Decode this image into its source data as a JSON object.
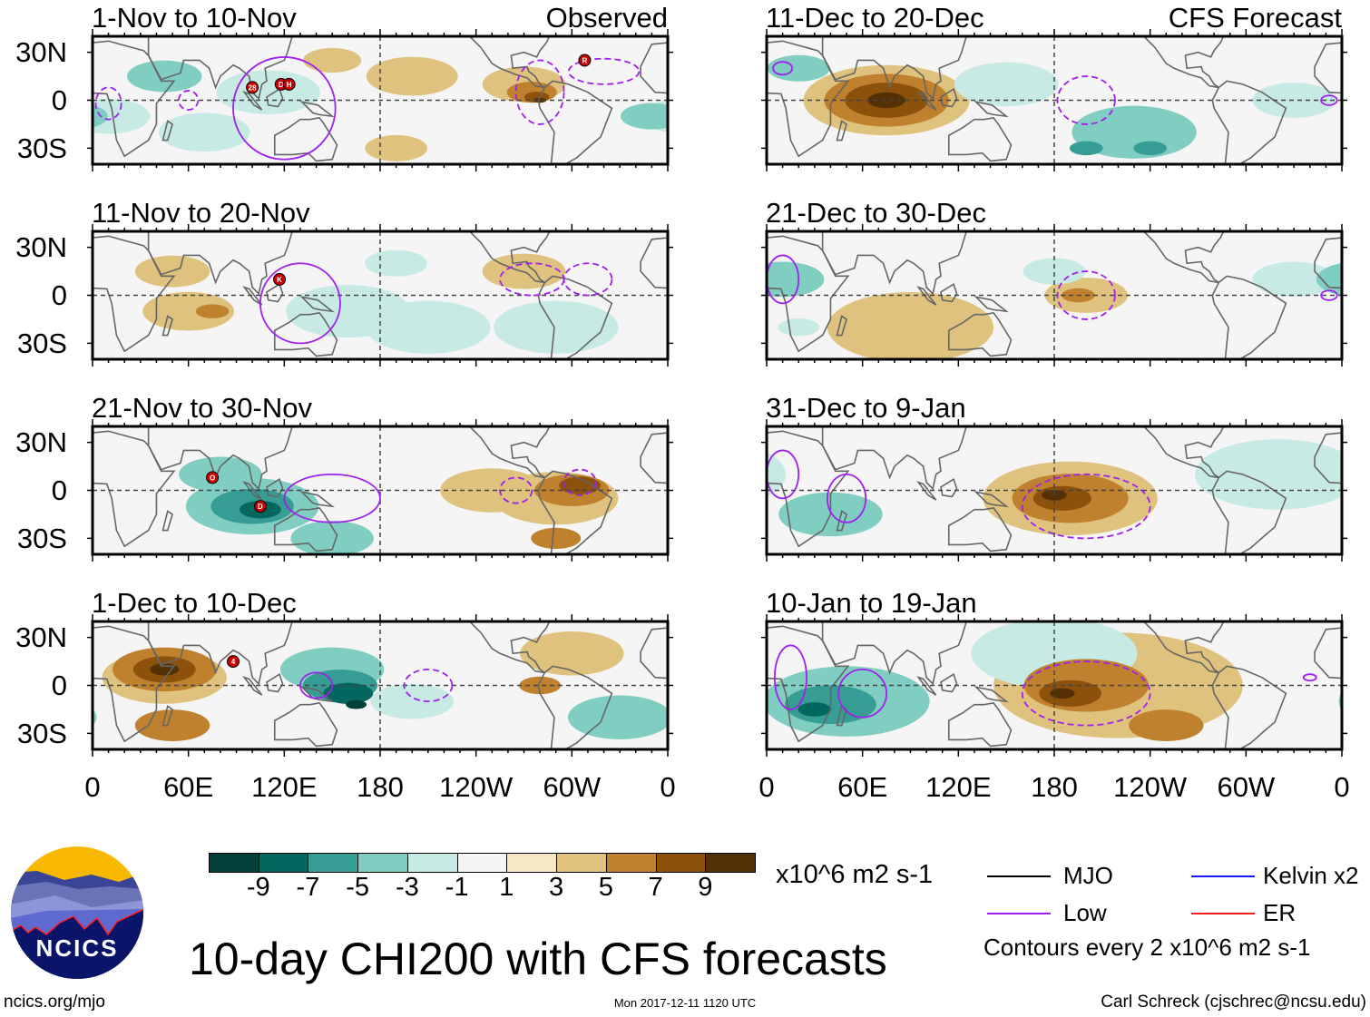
{
  "colors": {
    "levels": [
      "#01403a",
      "#02675f",
      "#359d93",
      "#80cdc1",
      "#c7eae5",
      "#f5f5f5",
      "#f6e8c3",
      "#dfc27d",
      "#bf812d",
      "#8c510a",
      "#543005"
    ],
    "low_contour": "#a020f0",
    "mjo": "#000000",
    "kelvin": "#1a1aff",
    "er": "#ff1a1a",
    "storm": "#cc0000"
  },
  "axes": {
    "lat_labels": [
      "30N",
      "0",
      "30S"
    ],
    "lon_labels": [
      "0",
      "60E",
      "120E",
      "180",
      "120W",
      "60W",
      "0"
    ]
  },
  "panels": [
    {
      "title": "1-Nov to 10-Nov",
      "tag": "Observed",
      "blobs": [
        [
          45,
          15,
          18,
          -3
        ],
        [
          70,
          -20,
          22,
          -2
        ],
        [
          110,
          5,
          25,
          -2
        ],
        [
          10,
          -10,
          20,
          -2
        ],
        [
          350,
          -10,
          15,
          -3
        ],
        [
          200,
          15,
          22,
          2
        ],
        [
          150,
          25,
          14,
          2
        ],
        [
          190,
          -30,
          15,
          2
        ],
        [
          270,
          10,
          20,
          2
        ],
        [
          275,
          5,
          12,
          4
        ],
        [
          278,
          2,
          6,
          6
        ],
        [
          280,
          0,
          3,
          8
        ]
      ],
      "contours": [
        [
          120,
          -5,
          32,
          32,
          "solid"
        ],
        [
          280,
          5,
          15,
          20,
          "dashed"
        ],
        [
          320,
          18,
          22,
          8,
          "dashed"
        ],
        [
          60,
          0,
          6,
          6,
          "dashed"
        ],
        [
          10,
          -2,
          8,
          10,
          "dashed"
        ]
      ],
      "storms": [
        [
          100,
          8,
          "28"
        ],
        [
          118,
          10,
          "D"
        ],
        [
          123,
          10,
          "H"
        ],
        [
          308,
          25,
          "R"
        ]
      ]
    },
    {
      "title": "11-Nov to 20-Nov",
      "tag": "",
      "blobs": [
        [
          60,
          -10,
          22,
          2
        ],
        [
          50,
          15,
          18,
          2
        ],
        [
          75,
          -10,
          8,
          4
        ],
        [
          160,
          -10,
          30,
          -2
        ],
        [
          210,
          -20,
          30,
          -2
        ],
        [
          290,
          -20,
          30,
          -2
        ],
        [
          190,
          20,
          15,
          -2
        ],
        [
          270,
          15,
          20,
          2
        ]
      ],
      "contours": [
        [
          130,
          -5,
          25,
          25,
          "solid"
        ],
        [
          275,
          10,
          20,
          10,
          "dashed"
        ],
        [
          310,
          10,
          15,
          10,
          "dashed"
        ]
      ],
      "storms": [
        [
          117,
          10,
          "K"
        ]
      ]
    },
    {
      "title": "21-Nov to 30-Nov",
      "tag": "",
      "blobs": [
        [
          100,
          -10,
          32,
          -3
        ],
        [
          80,
          10,
          20,
          -3
        ],
        [
          150,
          -30,
          20,
          -3
        ],
        [
          100,
          -10,
          20,
          -5
        ],
        [
          105,
          -12,
          10,
          -7
        ],
        [
          250,
          0,
          25,
          2
        ],
        [
          290,
          -5,
          30,
          2
        ],
        [
          300,
          0,
          18,
          4
        ],
        [
          305,
          3,
          10,
          6
        ],
        [
          290,
          -30,
          12,
          4
        ]
      ],
      "contours": [
        [
          150,
          -5,
          30,
          15,
          "solid"
        ],
        [
          305,
          5,
          10,
          8,
          "dashed"
        ],
        [
          265,
          0,
          10,
          8,
          "dashed"
        ]
      ],
      "storms": [
        [
          75,
          8,
          "O"
        ],
        [
          105,
          -10,
          "D"
        ]
      ]
    },
    {
      "title": "1-Dec to 10-Dec",
      "tag": "",
      "blobs": [
        [
          45,
          5,
          30,
          2
        ],
        [
          45,
          10,
          25,
          4
        ],
        [
          45,
          10,
          15,
          6
        ],
        [
          45,
          10,
          7,
          8
        ],
        [
          50,
          -25,
          18,
          4
        ],
        [
          150,
          10,
          25,
          -3
        ],
        [
          155,
          0,
          18,
          -5
        ],
        [
          160,
          -5,
          12,
          -7
        ],
        [
          165,
          -12,
          5,
          -9
        ],
        [
          200,
          -10,
          20,
          -2
        ],
        [
          330,
          -20,
          25,
          -3
        ],
        [
          280,
          0,
          10,
          4
        ],
        [
          300,
          20,
          25,
          2
        ]
      ],
      "contours": [
        [
          140,
          0,
          10,
          8,
          "solid"
        ],
        [
          210,
          0,
          15,
          10,
          "dashed"
        ]
      ],
      "storms": [
        [
          88,
          15,
          "4"
        ]
      ]
    },
    {
      "title": "11-Dec to 20-Dec",
      "tag": "CFS Forecast",
      "blobs": [
        [
          75,
          0,
          40,
          2
        ],
        [
          75,
          0,
          30,
          4
        ],
        [
          75,
          0,
          20,
          6
        ],
        [
          75,
          0,
          9,
          8
        ],
        [
          20,
          20,
          15,
          -4
        ],
        [
          150,
          10,
          25,
          -2
        ],
        [
          230,
          -20,
          30,
          -3
        ],
        [
          200,
          -30,
          8,
          -6
        ],
        [
          240,
          -30,
          8,
          -5
        ],
        [
          330,
          0,
          20,
          -2
        ]
      ],
      "contours": [
        [
          200,
          0,
          18,
          15,
          "dashed"
        ],
        [
          352,
          0,
          5,
          3,
          "solid"
        ],
        [
          10,
          20,
          6,
          4,
          "solid"
        ]
      ],
      "storms": []
    },
    {
      "title": "21-Dec to 30-Dec",
      "tag": "",
      "blobs": [
        [
          90,
          -20,
          40,
          2
        ],
        [
          200,
          0,
          20,
          2
        ],
        [
          195,
          0,
          8,
          4
        ],
        [
          10,
          10,
          20,
          -3
        ],
        [
          180,
          15,
          15,
          -2
        ],
        [
          330,
          10,
          20,
          -2
        ],
        [
          20,
          -20,
          10,
          -2
        ]
      ],
      "contours": [
        [
          200,
          0,
          18,
          15,
          "dashed"
        ],
        [
          10,
          10,
          10,
          15,
          "solid"
        ],
        [
          352,
          0,
          5,
          3,
          "solid"
        ]
      ],
      "storms": []
    },
    {
      "title": "31-Dec to 9-Jan",
      "tag": "",
      "blobs": [
        [
          190,
          -5,
          42,
          2
        ],
        [
          190,
          -5,
          28,
          4
        ],
        [
          185,
          -5,
          14,
          6
        ],
        [
          180,
          -3,
          6,
          8
        ],
        [
          40,
          -15,
          25,
          -3
        ],
        [
          320,
          10,
          40,
          -2
        ]
      ],
      "contours": [
        [
          50,
          -5,
          12,
          15,
          "solid"
        ],
        [
          10,
          10,
          10,
          15,
          "solid"
        ],
        [
          200,
          -10,
          40,
          20,
          "dashed"
        ]
      ],
      "storms": []
    },
    {
      "title": "10-Jan to 19-Jan",
      "tag": "",
      "blobs": [
        [
          220,
          0,
          60,
          2
        ],
        [
          200,
          0,
          30,
          4
        ],
        [
          190,
          -5,
          15,
          6
        ],
        [
          185,
          -5,
          6,
          8
        ],
        [
          250,
          -25,
          18,
          4
        ],
        [
          50,
          -10,
          40,
          -3
        ],
        [
          40,
          -12,
          22,
          -5
        ],
        [
          30,
          -15,
          8,
          -7
        ],
        [
          180,
          20,
          40,
          -2
        ]
      ],
      "contours": [
        [
          60,
          -5,
          15,
          15,
          "solid"
        ],
        [
          15,
          5,
          10,
          20,
          "solid"
        ],
        [
          200,
          -5,
          40,
          20,
          "dashed"
        ],
        [
          340,
          5,
          4,
          2,
          "solid"
        ]
      ],
      "storms": []
    }
  ],
  "colorbar": {
    "labels": [
      "-9",
      "-7",
      "-5",
      "-3",
      "-1",
      "1",
      "3",
      "5",
      "7",
      "9"
    ],
    "units": "x10^6 m2 s-1"
  },
  "legend": {
    "mjo": "MJO",
    "kelvin": "Kelvin x2",
    "low": "Low",
    "er": "ER",
    "note": "Contours every 2 x10^6 m2 s-1"
  },
  "title": "10-day CHI200 with CFS forecasts",
  "logo": {
    "text": "NCICS"
  },
  "footer": {
    "url": "ncics.org/mjo",
    "timestamp": "Mon 2017-12-11 1120 UTC",
    "credit": "Carl Schreck (cjschrec@ncsu.edu)"
  }
}
